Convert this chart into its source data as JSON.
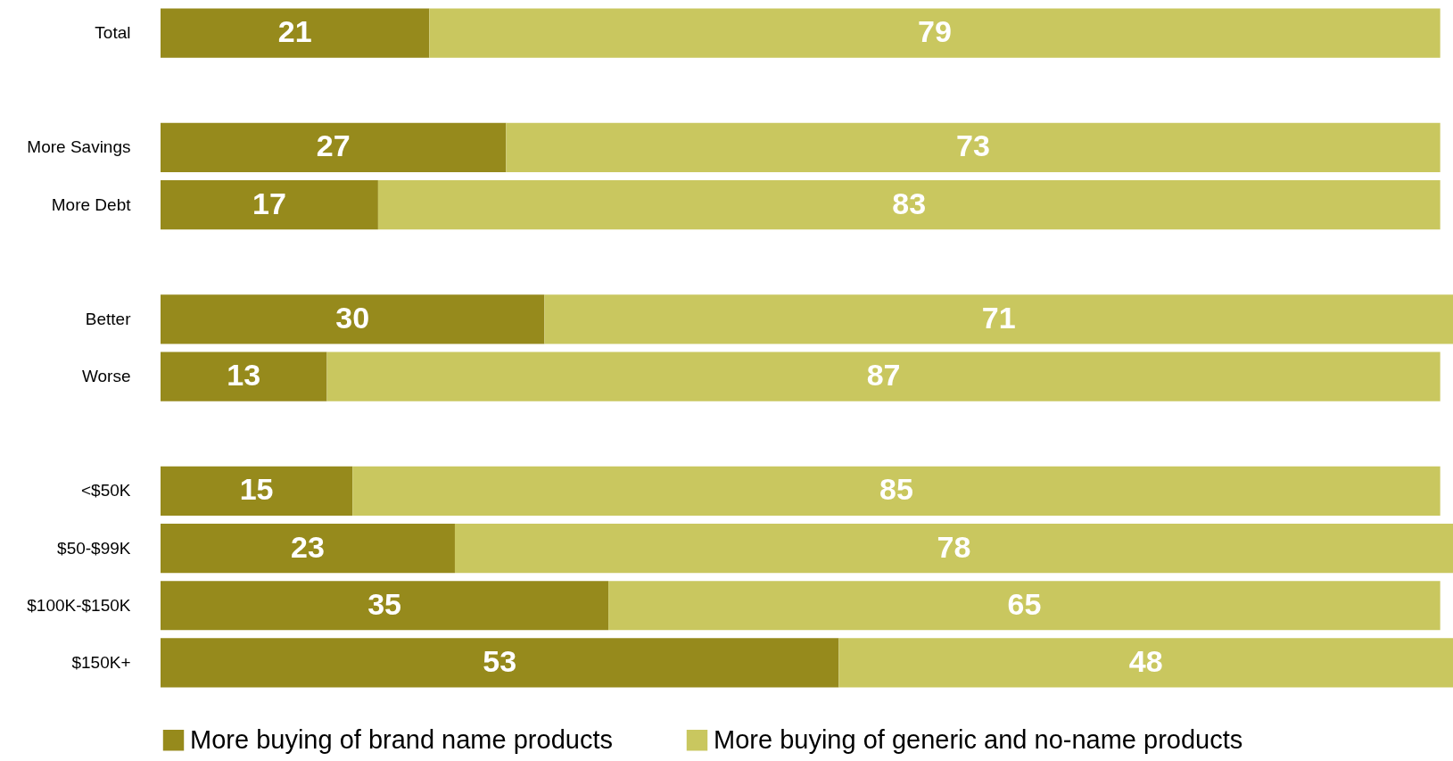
{
  "chart_data": {
    "type": "bar",
    "orientation": "horizontal",
    "stacked": true,
    "data_labels": true,
    "legend": "bottom",
    "grid": false,
    "categories": [
      "Total",
      null,
      "More Savings",
      "More Debt",
      null,
      "Better",
      "Worse",
      null,
      "<$50K",
      "$50-$99K",
      "$100K-$150K",
      "$150K+"
    ],
    "series": [
      {
        "name": "More buying of brand name products",
        "color": "#968a1c",
        "values": [
          21,
          null,
          27,
          17,
          null,
          30,
          13,
          null,
          15,
          23,
          35,
          53
        ]
      },
      {
        "name": "More buying of generic and no-name products",
        "color": "#c9c75f",
        "values": [
          79,
          null,
          73,
          83,
          null,
          71,
          87,
          null,
          85,
          78,
          65,
          48
        ]
      }
    ]
  }
}
